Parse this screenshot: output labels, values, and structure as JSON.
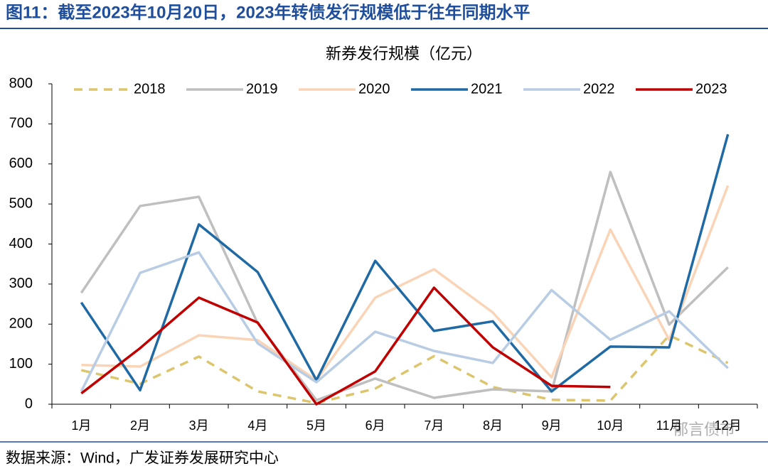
{
  "chart_data": {
    "type": "line",
    "title": "图11：截至2023年10月20日，2023年转债发行规模低于往年同期水平",
    "subtitle": "新券发行规模（亿元）",
    "source": "数据来源：Wind，广发证券发展研究中心",
    "watermark": "郁言债市",
    "categories": [
      "1月",
      "2月",
      "3月",
      "4月",
      "5月",
      "6月",
      "7月",
      "8月",
      "9月",
      "10月",
      "11月",
      "12月"
    ],
    "ylim": [
      0,
      800
    ],
    "yticks": [
      0,
      100,
      200,
      300,
      400,
      500,
      600,
      700,
      800
    ],
    "grid": false,
    "legend": "top",
    "series": [
      {
        "name": "2018",
        "color": "#dcc56c",
        "dashed": true,
        "values": [
          85,
          51,
          119,
          32,
          3,
          39,
          120,
          43,
          11,
          9,
          172,
          103
        ]
      },
      {
        "name": "2019",
        "color": "#bfbfbf",
        "values": [
          278,
          495,
          518,
          202,
          10,
          64,
          16,
          37,
          32,
          580,
          199,
          342
        ]
      },
      {
        "name": "2020",
        "color": "#f9d4b6",
        "values": [
          98,
          94,
          172,
          160,
          60,
          266,
          337,
          229,
          67,
          436,
          161,
          546
        ]
      },
      {
        "name": "2021",
        "color": "#1f6aa5",
        "values": [
          254,
          35,
          449,
          330,
          60,
          358,
          183,
          207,
          32,
          144,
          142,
          674
        ]
      },
      {
        "name": "2022",
        "color": "#b8cce4",
        "values": [
          32,
          328,
          379,
          152,
          55,
          181,
          133,
          103,
          285,
          161,
          232,
          90
        ]
      },
      {
        "name": "2023",
        "color": "#c00000",
        "values": [
          27,
          140,
          266,
          204,
          0,
          82,
          291,
          142,
          46,
          43,
          null,
          null
        ]
      }
    ]
  }
}
